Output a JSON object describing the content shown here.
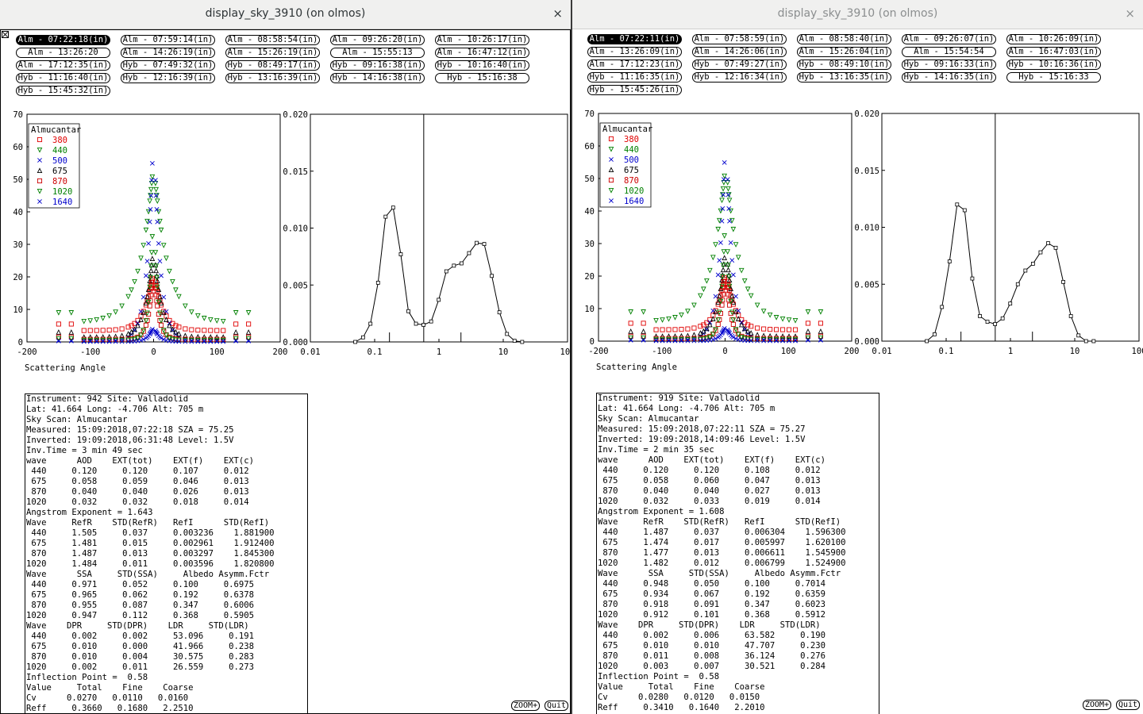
{
  "windows": [
    {
      "title": "display_sky_3910 (on olmos)",
      "close_glyph": "×",
      "buttons": [
        "Alm - 07:22:18(in)",
        "Alm - 07:59:14(in)",
        "Alm - 08:58:54(in)",
        "Alm - 09:26:20(in)",
        "Alm - 10:26:17(in)",
        "Alm - 13:26:20",
        "Alm - 14:26:19(in)",
        "Alm - 15:26:19(in)",
        "Alm - 15:55:13",
        "Alm - 16:47:12(in)",
        "Alm - 17:12:35(in)",
        "Hyb - 07:49:32(in)",
        "Hyb - 08:49:17(in)",
        "Hyb - 09:16:38(in)",
        "Hyb - 10:16:40(in)",
        "Hyb - 11:16:40(in)",
        "Hyb - 12:16:39(in)",
        "Hyb - 13:16:39(in)",
        "Hyb - 14:16:38(in)",
        "Hyb - 15:16:38",
        "Hyb - 15:45:32(in)"
      ],
      "selected_button": 0,
      "info_lines": [
        "Instrument: 942 Site: Valladolid",
        "Lat: 41.664 Long: -4.706 Alt: 705 m",
        "Sky Scan: Almucantar",
        "Measured: 15:09:2018,07:22:18 SZA = 75.25",
        "Inverted: 19:09:2018,06:31:48 Level: 1.5V",
        "Inv.Time = 3 min 49 sec",
        "wave      AOD    EXT(tot)    EXT(f)    EXT(c)",
        " 440     0.120     0.120     0.107     0.012",
        " 675     0.058     0.059     0.046     0.013",
        " 870     0.040     0.040     0.026     0.013",
        "1020     0.032     0.032     0.018     0.014",
        "Angstrom Exponent = 1.643",
        "Wave     RefR    STD(RefR)   RefI      STD(RefI)",
        " 440     1.505     0.037     0.003236    1.881900",
        " 675     1.481     0.015     0.002961    1.912400",
        " 870     1.487     0.013     0.003297    1.845300",
        "1020     1.484     0.011     0.003596    1.820800",
        "Wave      SSA     STD(SSA)     Albedo Asymm.Fctr",
        " 440     0.971     0.052     0.100     0.6975",
        " 675     0.965     0.062     0.192     0.6378",
        " 870     0.955     0.087     0.347     0.6006",
        "1020     0.947     0.112     0.368     0.5905",
        "Wave    DPR     STD(DPR)    LDR     STD(LDR)",
        " 440     0.002     0.002     53.096     0.191",
        " 675     0.010     0.000     41.966     0.238",
        " 870     0.010     0.004     30.575     0.283",
        "1020     0.002     0.011     26.559     0.273",
        "Inflection Point =  0.58",
        "Value     Total    Fine    Coarse",
        "Cv      0.0270   0.0110   0.0160",
        "Reff     0.3660   0.1680   2.2510"
      ]
    },
    {
      "title": "display_sky_3910 (on olmos)",
      "close_glyph": "×",
      "buttons": [
        "Alm - 07:22:11(in)",
        "Alm - 07:58:59(in)",
        "Alm - 08:58:40(in)",
        "Alm - 09:26:07(in)",
        "Alm - 10:26:09(in)",
        "Alm - 13:26:09(in)",
        "Alm - 14:26:06(in)",
        "Alm - 15:26:04(in)",
        "Alm - 15:54:54",
        "Alm - 16:47:03(in)",
        "Alm - 17:12:23(in)",
        "Hyb - 07:49:27(in)",
        "Hyb - 08:49:10(in)",
        "Hyb - 09:16:33(in)",
        "Hyb - 10:16:36(in)",
        "Hyb - 11:16:35(in)",
        "Hyb - 12:16:34(in)",
        "Hyb - 13:16:35(in)",
        "Hyb - 14:16:35(in)",
        "Hyb - 15:16:33",
        "Hyb - 15:45:26(in)"
      ],
      "selected_button": 0,
      "info_lines": [
        "Instrument: 919 Site: Valladolid",
        "Lat: 41.664 Long: -4.706 Alt: 705 m",
        "Sky Scan: Almucantar",
        "Measured: 15:09:2018,07:22:11 SZA = 75.27",
        "Inverted: 19:09:2018,14:09:46 Level: 1.5V",
        "Inv.Time = 2 min 35 sec",
        "wave      AOD    EXT(tot)    EXT(f)    EXT(c)",
        " 440     0.120     0.120     0.108     0.012",
        " 675     0.058     0.060     0.047     0.013",
        " 870     0.040     0.040     0.027     0.013",
        "1020     0.032     0.033     0.019     0.014",
        "Angstrom Exponent = 1.608",
        "Wave     RefR    STD(RefR)   RefI      STD(RefI)",
        " 440     1.487     0.037     0.006304    1.596300",
        " 675     1.474     0.017     0.005997    1.620100",
        " 870     1.477     0.013     0.006611    1.545900",
        "1020     1.482     0.012     0.006799    1.524900",
        "Wave      SSA     STD(SSA)     Albedo Asymm.Fctr",
        " 440     0.948     0.050     0.100     0.7014",
        " 675     0.934     0.067     0.192     0.6359",
        " 870     0.918     0.091     0.347     0.6023",
        "1020     0.912     0.101     0.368     0.5912",
        "Wave    DPR     STD(DPR)    LDR     STD(LDR)",
        " 440     0.002     0.006     63.582     0.190",
        " 675     0.010     0.010     47.707     0.230",
        " 870     0.011     0.008     36.124     0.276",
        "1020     0.003     0.007     30.521     0.284",
        "Inflection Point =  0.58",
        "Value     Total    Fine    Coarse",
        "Cv      0.0280   0.0120   0.0150",
        "Reff     0.3410   0.1640   2.2010"
      ]
    }
  ],
  "labels": {
    "scattering_axis": "Scattering Angle",
    "legend_title": "Almucantar",
    "zoom": "ZOOM+",
    "quit": "Quit"
  },
  "legend": [
    {
      "wave": "380",
      "color": "#e00000",
      "marker": "square"
    },
    {
      "wave": "440",
      "color": "#008000",
      "marker": "tri-down"
    },
    {
      "wave": "500",
      "color": "#0000cc",
      "marker": "x"
    },
    {
      "wave": "675",
      "color": "#000000",
      "marker": "tri-up"
    },
    {
      "wave": "870",
      "color": "#cc0000",
      "marker": "square"
    },
    {
      "wave": "1020",
      "color": "#008000",
      "marker": "tri-down"
    },
    {
      "wave": "1640",
      "color": "#0000cc",
      "marker": "x"
    }
  ],
  "chart_data": [
    {
      "type": "scatter",
      "xlabel": "Scattering Angle",
      "xlim": [
        -200,
        200
      ],
      "ylim": [
        0,
        70
      ],
      "xticks": [
        -200,
        -100,
        0,
        100,
        200
      ],
      "yticks": [
        0,
        10,
        20,
        30,
        40,
        50,
        60,
        70
      ],
      "legend_title": "Almucantar",
      "legend_position": "top-left",
      "angles": [
        -150,
        -130,
        -110,
        -100,
        -90,
        -80,
        -70,
        -60,
        -50,
        -40,
        -35,
        -30,
        -25,
        -20,
        -16,
        -12,
        -10,
        -8,
        -6,
        -5,
        -4,
        -3,
        -2,
        3,
        4,
        5,
        6,
        8,
        10,
        12,
        16,
        20,
        25,
        30,
        35,
        40,
        50,
        60,
        70,
        80,
        90,
        100,
        110,
        130,
        150
      ],
      "series": [
        {
          "name": "380",
          "peak": 22,
          "width": 14,
          "base": 3.5,
          "tail": 5.5
        },
        {
          "name": "440",
          "peak": 55,
          "width": 22,
          "base": 6,
          "tail": 9
        },
        {
          "name": "500",
          "peak": 67,
          "width": 10,
          "base": 0.3,
          "tail": 0.5
        },
        {
          "name": "675",
          "peak": 30,
          "width": 12,
          "base": 1.5,
          "tail": 3
        },
        {
          "name": "870",
          "peak": 25,
          "width": 7,
          "base": 0.8,
          "tail": 1.5
        },
        {
          "name": "1020",
          "peak": 45,
          "width": 6,
          "base": 0.5,
          "tail": 1
        },
        {
          "name": "1640",
          "peak": 5,
          "width": 8,
          "base": 0.1,
          "tail": 0.3
        }
      ]
    },
    {
      "type": "line",
      "xscale": "log",
      "xlim": [
        0.01,
        100
      ],
      "ylim": [
        0,
        0.02
      ],
      "xticks": [
        0.01,
        0.1,
        1,
        10,
        100
      ],
      "yticks": [
        0.0,
        0.005,
        0.01,
        0.015,
        0.02
      ],
      "inflection_point": 0.58,
      "x": [
        0.05,
        0.066,
        0.086,
        0.113,
        0.148,
        0.194,
        0.255,
        0.335,
        0.439,
        0.576,
        0.756,
        0.992,
        1.302,
        1.708,
        2.241,
        2.94,
        3.857,
        5.061,
        6.641,
        8.713,
        11.43,
        15.0,
        19.69
      ],
      "y": [
        0.0,
        0.0004,
        0.0016,
        0.0052,
        0.011,
        0.0118,
        0.0077,
        0.0027,
        0.0016,
        0.0015,
        0.0018,
        0.0037,
        0.0062,
        0.0067,
        0.0069,
        0.0078,
        0.0087,
        0.0086,
        0.0058,
        0.0026,
        0.0007,
        0.0001,
        0.0
      ],
      "y_right": [
        0.0,
        0.0006,
        0.003,
        0.007,
        0.012,
        0.0115,
        0.0055,
        0.0022,
        0.0017,
        0.0015,
        0.002,
        0.0033,
        0.005,
        0.0062,
        0.0068,
        0.0078,
        0.0086,
        0.0082,
        0.0052,
        0.0022,
        0.0005,
        0.0,
        0.0
      ]
    }
  ]
}
